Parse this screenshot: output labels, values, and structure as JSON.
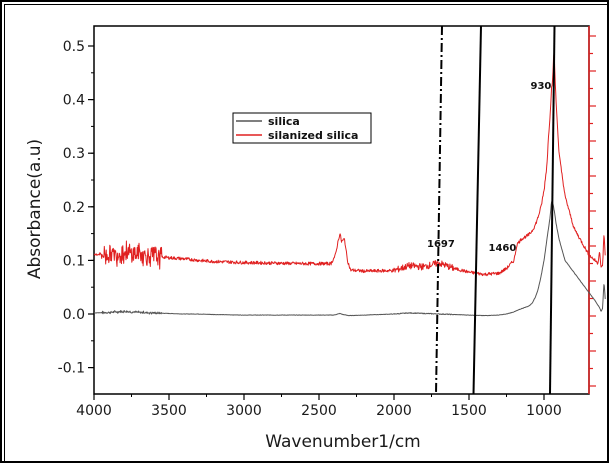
{
  "chart_data": {
    "type": "line",
    "title": "",
    "xlabel": "Wavenumber1/cm",
    "ylabel": "Absorbance(a.u)",
    "xlim": [
      4000,
      580
    ],
    "ylim": [
      -0.15,
      0.55
    ],
    "x_ticks": [
      4000,
      3500,
      3000,
      2500,
      2000,
      1500,
      1000
    ],
    "y_ticks": [
      -0.1,
      0.0,
      0.1,
      0.2,
      0.3,
      0.4,
      0.5
    ],
    "x_tick_labels": [
      "4000",
      "3500",
      "3000",
      "2500",
      "2000",
      "1500",
      "1000"
    ],
    "y_tick_labels": [
      "-0.1",
      "0.0",
      "0.1",
      "0.2",
      "0.3",
      "0.4",
      "0.5"
    ],
    "grid": false,
    "legend_position": "upper-left-center",
    "series": [
      {
        "name": "silica",
        "color": "#555555",
        "x": [
          4000,
          3900,
          3850,
          3800,
          3700,
          3600,
          3500,
          3400,
          3300,
          3200,
          3000,
          2800,
          2600,
          2400,
          2360,
          2340,
          2300,
          2200,
          2000,
          1900,
          1800,
          1700,
          1600,
          1500,
          1400,
          1300,
          1250,
          1200,
          1150,
          1100,
          1080,
          1060,
          1040,
          1020,
          1000,
          980,
          960,
          950,
          940,
          930,
          920,
          900,
          880,
          860,
          820,
          780,
          740,
          700,
          660,
          630,
          620,
          610,
          600,
          590
        ],
        "y": [
          0.002,
          0.003,
          0.004,
          0.005,
          0.003,
          0.002,
          0.001,
          0.0,
          0.0,
          -0.001,
          -0.002,
          -0.002,
          -0.002,
          -0.002,
          0.001,
          -0.001,
          -0.003,
          -0.002,
          0.0,
          0.002,
          0.001,
          0.0,
          -0.001,
          -0.002,
          -0.003,
          -0.002,
          0.0,
          0.004,
          0.01,
          0.015,
          0.02,
          0.03,
          0.045,
          0.07,
          0.1,
          0.14,
          0.18,
          0.21,
          0.205,
          0.19,
          0.17,
          0.14,
          0.12,
          0.1,
          0.085,
          0.07,
          0.055,
          0.04,
          0.025,
          0.012,
          0.005,
          0.01,
          0.06,
          0.02
        ],
        "noise_region": [
          3950,
          3550,
          0.006
        ]
      },
      {
        "name": "silanized silica",
        "color": "#e02020",
        "x": [
          4000,
          3900,
          3850,
          3800,
          3700,
          3600,
          3500,
          3400,
          3300,
          3200,
          3000,
          2800,
          2600,
          2420,
          2390,
          2370,
          2360,
          2350,
          2330,
          2310,
          2290,
          2200,
          2000,
          1900,
          1800,
          1750,
          1700,
          1650,
          1600,
          1500,
          1400,
          1300,
          1250,
          1200,
          1180,
          1150,
          1100,
          1080,
          1060,
          1040,
          1020,
          1000,
          980,
          970,
          960,
          950,
          945,
          940,
          935,
          930,
          925,
          920,
          910,
          900,
          880,
          860,
          840,
          820,
          800,
          780,
          760,
          740,
          720,
          700,
          680,
          660,
          640,
          630,
          620,
          610,
          600,
          590
        ],
        "y": [
          0.112,
          0.11,
          0.112,
          0.115,
          0.112,
          0.108,
          0.105,
          0.103,
          0.1,
          0.098,
          0.096,
          0.095,
          0.094,
          0.094,
          0.11,
          0.14,
          0.15,
          0.135,
          0.14,
          0.1,
          0.082,
          0.08,
          0.081,
          0.09,
          0.088,
          0.092,
          0.095,
          0.09,
          0.085,
          0.078,
          0.074,
          0.076,
          0.085,
          0.1,
          0.13,
          0.14,
          0.148,
          0.155,
          0.165,
          0.18,
          0.2,
          0.23,
          0.28,
          0.33,
          0.37,
          0.42,
          0.43,
          0.45,
          0.49,
          0.47,
          0.43,
          0.4,
          0.35,
          0.3,
          0.26,
          0.22,
          0.2,
          0.18,
          0.16,
          0.15,
          0.14,
          0.13,
          0.12,
          0.11,
          0.105,
          0.1,
          0.095,
          0.12,
          0.085,
          0.09,
          0.15,
          0.1
        ],
        "noise_region": [
          3950,
          3550,
          0.05
        ]
      }
    ],
    "reference_lines": [
      {
        "style": "dash-dot",
        "x_top": 1680,
        "x_bottom": 1720
      },
      {
        "style": "solid",
        "x_top": 1420,
        "x_bottom": 1470
      },
      {
        "style": "solid",
        "x_top": 930,
        "x_bottom": 960
      }
    ],
    "annotations": [
      {
        "text": "1697",
        "x": 1780,
        "y": 0.125
      },
      {
        "text": "1460",
        "x": 1370,
        "y": 0.118
      },
      {
        "text": "930",
        "x": 1090,
        "y": 0.42
      }
    ],
    "right_axis": {
      "color": "#e02020"
    }
  }
}
